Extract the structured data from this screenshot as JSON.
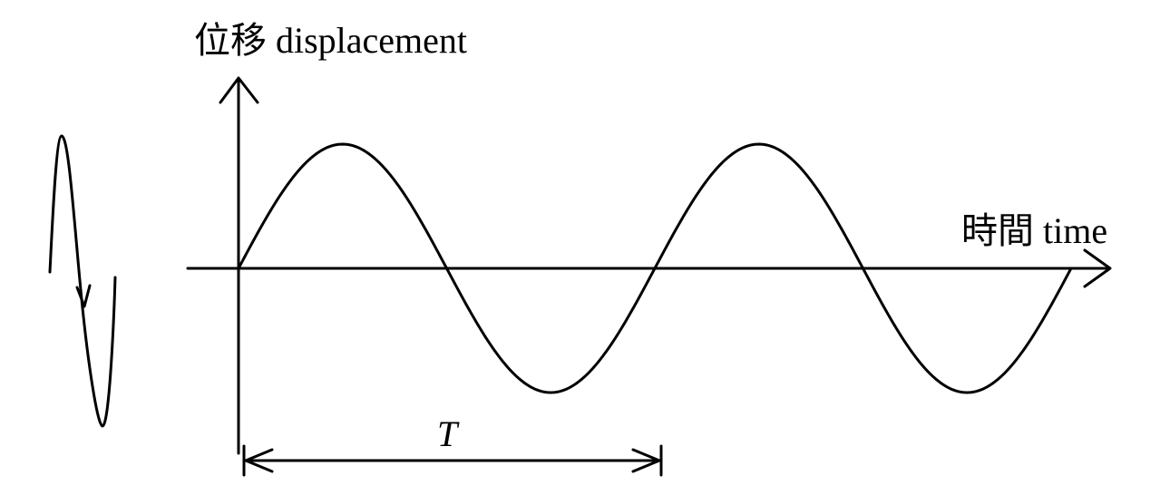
{
  "diagram": {
    "y_axis_label": "位移 displacement",
    "x_axis_label": "時間 time",
    "period_label": "T",
    "stroke_color": "#000000",
    "background_color": "#ffffff",
    "wave_cycles_shown": 2,
    "marked_period_count": 1,
    "wave_type": "sine",
    "side_sketch": "vertical oscillation path with downward arrow"
  }
}
